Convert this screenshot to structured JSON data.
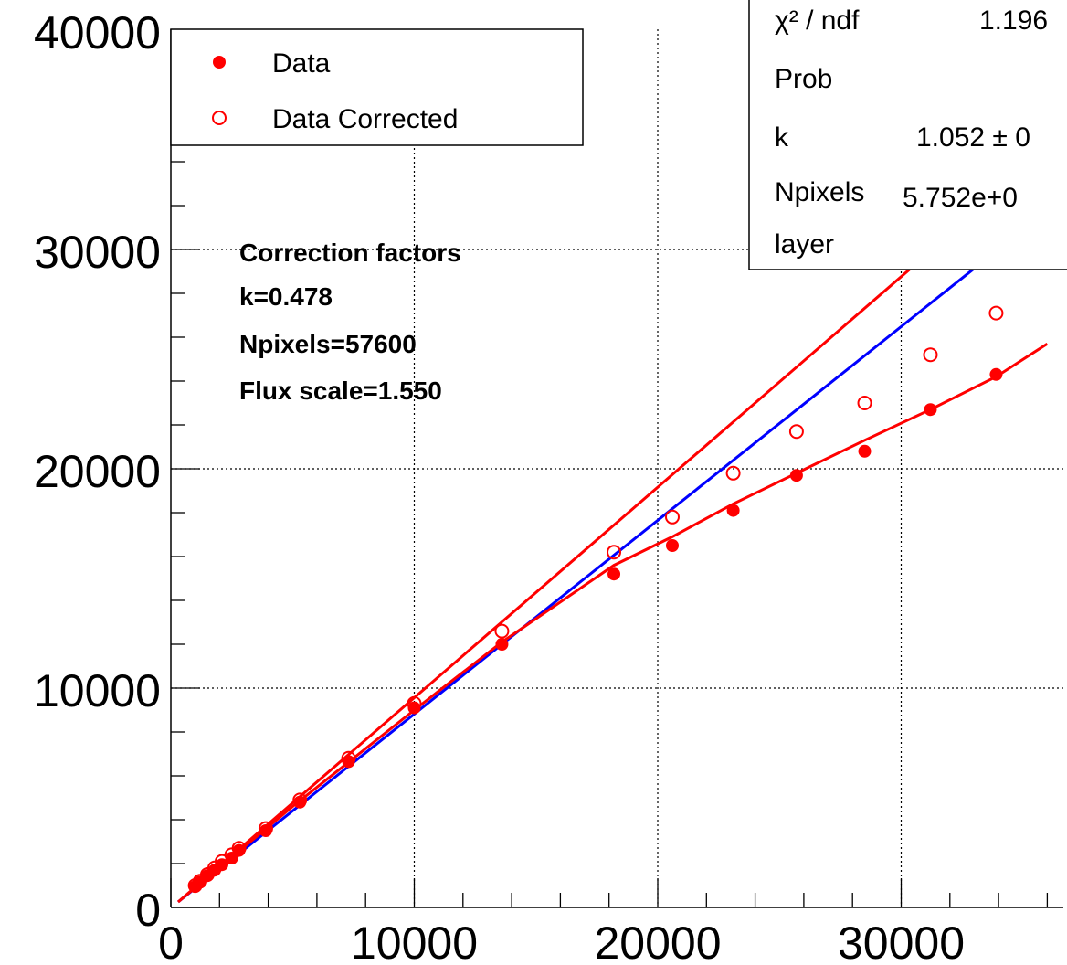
{
  "chart_data": {
    "type": "scatter",
    "title": "",
    "xlabel": "",
    "ylabel": "",
    "xlim": [
      0,
      36000
    ],
    "ylim": [
      0,
      40000
    ],
    "grid": true,
    "x_ticks": [
      {
        "value": 0,
        "label": "0"
      },
      {
        "value": 10000,
        "label": "10000"
      },
      {
        "value": 20000,
        "label": "20000"
      },
      {
        "value": 30000,
        "label": "30000"
      }
    ],
    "y_ticks": [
      {
        "value": 0,
        "label": "0"
      },
      {
        "value": 10000,
        "label": "10000"
      },
      {
        "value": 20000,
        "label": "20000"
      },
      {
        "value": 30000,
        "label": "30000"
      },
      {
        "value": 40000,
        "label": "40000"
      }
    ],
    "x_grid": [
      10000,
      20000,
      30000
    ],
    "y_grid": [
      10000,
      20000,
      30000
    ],
    "series": [
      {
        "name": "Data",
        "marker": "filled-circle",
        "color": "#ff0000",
        "points": [
          [
            1000,
            950
          ],
          [
            1200,
            1150
          ],
          [
            1500,
            1450
          ],
          [
            1800,
            1700
          ],
          [
            2100,
            1950
          ],
          [
            2500,
            2250
          ],
          [
            2800,
            2600
          ],
          [
            3900,
            3500
          ],
          [
            5300,
            4800
          ],
          [
            7300,
            6650
          ],
          [
            10000,
            9100
          ],
          [
            13600,
            12000
          ],
          [
            18200,
            15200
          ],
          [
            20600,
            16500
          ],
          [
            23100,
            18100
          ],
          [
            25700,
            19700
          ],
          [
            28500,
            20800
          ],
          [
            31200,
            22700
          ],
          [
            33900,
            24300
          ]
        ]
      },
      {
        "name": "Data Corrected",
        "marker": "open-circle",
        "color": "#ff0000",
        "points": [
          [
            1000,
            1000
          ],
          [
            1200,
            1200
          ],
          [
            1500,
            1500
          ],
          [
            1800,
            1800
          ],
          [
            2100,
            2100
          ],
          [
            2500,
            2400
          ],
          [
            2800,
            2700
          ],
          [
            3900,
            3600
          ],
          [
            5300,
            4900
          ],
          [
            7300,
            6800
          ],
          [
            10000,
            9300
          ],
          [
            13600,
            12600
          ],
          [
            18200,
            16200
          ],
          [
            20600,
            17800
          ],
          [
            23100,
            19800
          ],
          [
            25700,
            21700
          ],
          [
            28500,
            23000
          ],
          [
            31200,
            25200
          ],
          [
            33900,
            27100
          ]
        ]
      }
    ],
    "fit_lines": [
      {
        "color": "#ff0000",
        "points": [
          [
            300,
            250
          ],
          [
            34000,
            32600
          ]
        ]
      },
      {
        "color": "#0000ff",
        "points": [
          [
            300,
            250
          ],
          [
            35000,
            30900
          ]
        ]
      },
      {
        "color": "#ff0000",
        "points": [
          [
            300,
            250
          ],
          [
            5000,
            4600
          ],
          [
            10000,
            9000
          ],
          [
            13600,
            12100
          ],
          [
            18200,
            15600
          ],
          [
            20600,
            16900
          ],
          [
            23100,
            18400
          ],
          [
            25700,
            19800
          ],
          [
            28500,
            21300
          ],
          [
            31200,
            22700
          ],
          [
            33900,
            24200
          ],
          [
            36000,
            25700
          ]
        ]
      }
    ],
    "legend": {
      "position": "top-left",
      "entries": [
        {
          "label": "Data",
          "marker": "filled-circle"
        },
        {
          "label": "Data Corrected",
          "marker": "open-circle"
        }
      ]
    },
    "stats_box": {
      "position": "top-right",
      "rows": [
        {
          "label": "χ² / ndf",
          "value": "1.196"
        },
        {
          "label": "Prob",
          "value": ""
        },
        {
          "label": "k",
          "value": "1.052 ± 0"
        },
        {
          "label": "Npixels",
          "value": "5.752e+0"
        },
        {
          "label": "layer",
          "value": ""
        }
      ]
    },
    "annotation": {
      "lines": [
        "Correction factors",
        "k=0.478",
        "Npixels=57600",
        "Flux scale=1.550"
      ]
    }
  }
}
